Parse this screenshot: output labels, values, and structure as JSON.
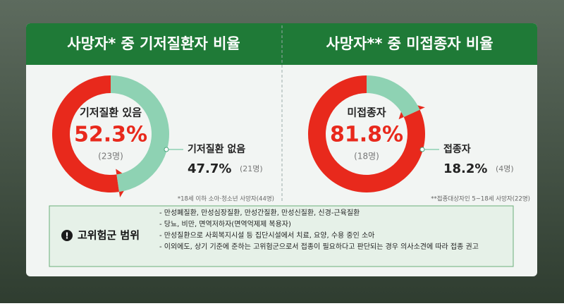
{
  "chart_data": [
    {
      "type": "pie",
      "title": "사망자* 중 기저질환자 비율",
      "categories": [
        "기저질환 있음",
        "기저질환 없음"
      ],
      "values": [
        52.3,
        47.7
      ],
      "value_labels": [
        "52.3%",
        "47.7%"
      ],
      "count_labels": [
        "(23명)",
        "(21명)"
      ],
      "colors": [
        "#e8291c",
        "#8ed2b3"
      ],
      "footnote": "*18세 이하 소아·청소년 사망자(44명)"
    },
    {
      "type": "pie",
      "title": "사망자** 중 미접종자 비율",
      "categories": [
        "미접종자",
        "접종자"
      ],
      "values": [
        81.8,
        18.2
      ],
      "value_labels": [
        "81.8%",
        "18.2%"
      ],
      "count_labels": [
        "(18명)",
        "(4명)"
      ],
      "colors": [
        "#e8291c",
        "#8ed2b3"
      ],
      "footnote": "**접종대상자인 5~18세 사망자(22명)"
    }
  ],
  "high_risk": {
    "title": "고위험군 범위",
    "items": [
      "- 만성폐질환, 만성심장질환, 만성간질환, 만성신질환, 신경-근육질환",
      "- 당뇨, 비만, 면역저하자(면역억제제 복용자)",
      "- 만성질환으로 사회복지시설 등 집단시설에서 치료, 요양, 수용 중인 소아",
      "- 이외에도, 상기 기준에 준하는 고위험군으로서 접종이 필요하다고 판단되는 경우 의사소견에 따라 접종 권고"
    ]
  }
}
